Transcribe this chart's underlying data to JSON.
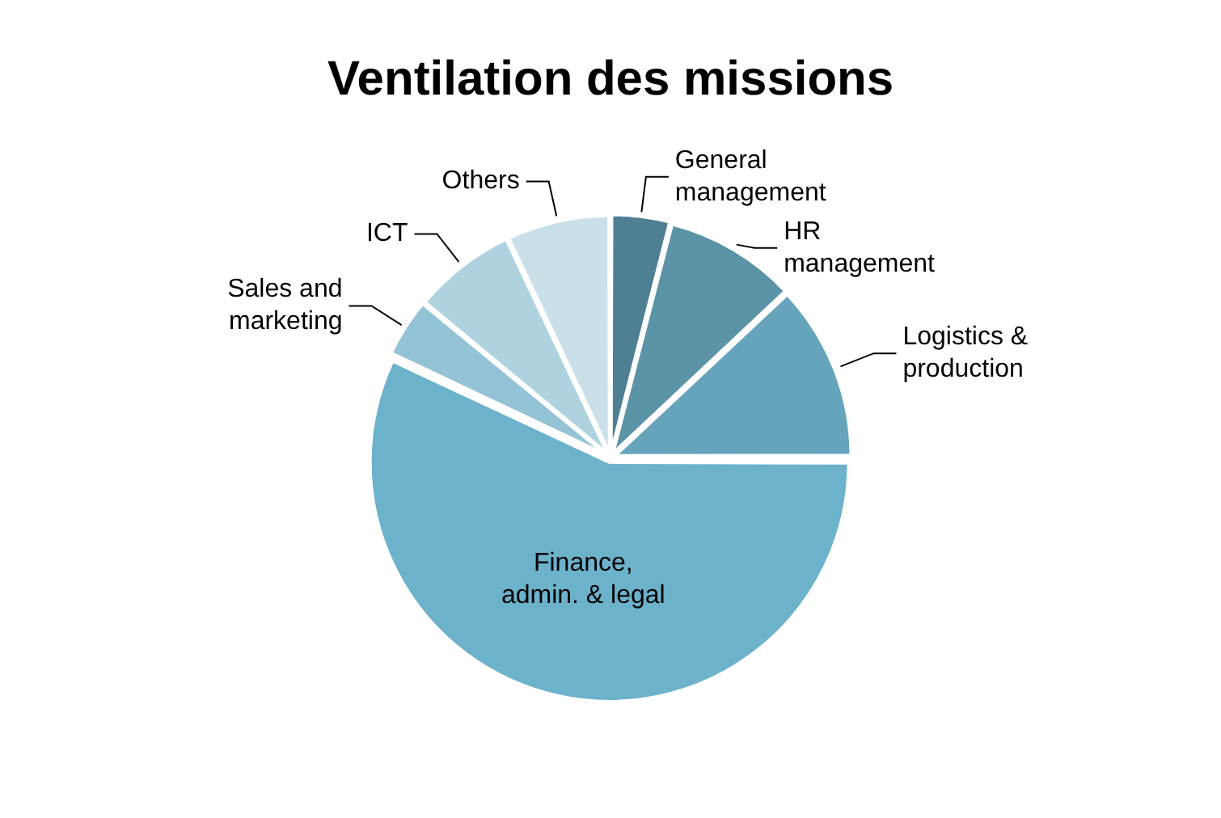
{
  "chart_data": {
    "type": "pie",
    "title": "Ventilation des missions",
    "categories": [
      "General management",
      "HR management",
      "Logistics & production",
      "Finance, admin. & legal",
      "Sales and marketing",
      "ICT",
      "Others"
    ],
    "values": [
      4,
      9,
      12,
      57,
      4,
      7,
      7
    ],
    "colors": [
      "#4e7f93",
      "#5b93a7",
      "#65a4bb",
      "#6cb2cb",
      "#93c3d5",
      "#aed2e0",
      "#c9e0e9"
    ],
    "legend": false
  }
}
